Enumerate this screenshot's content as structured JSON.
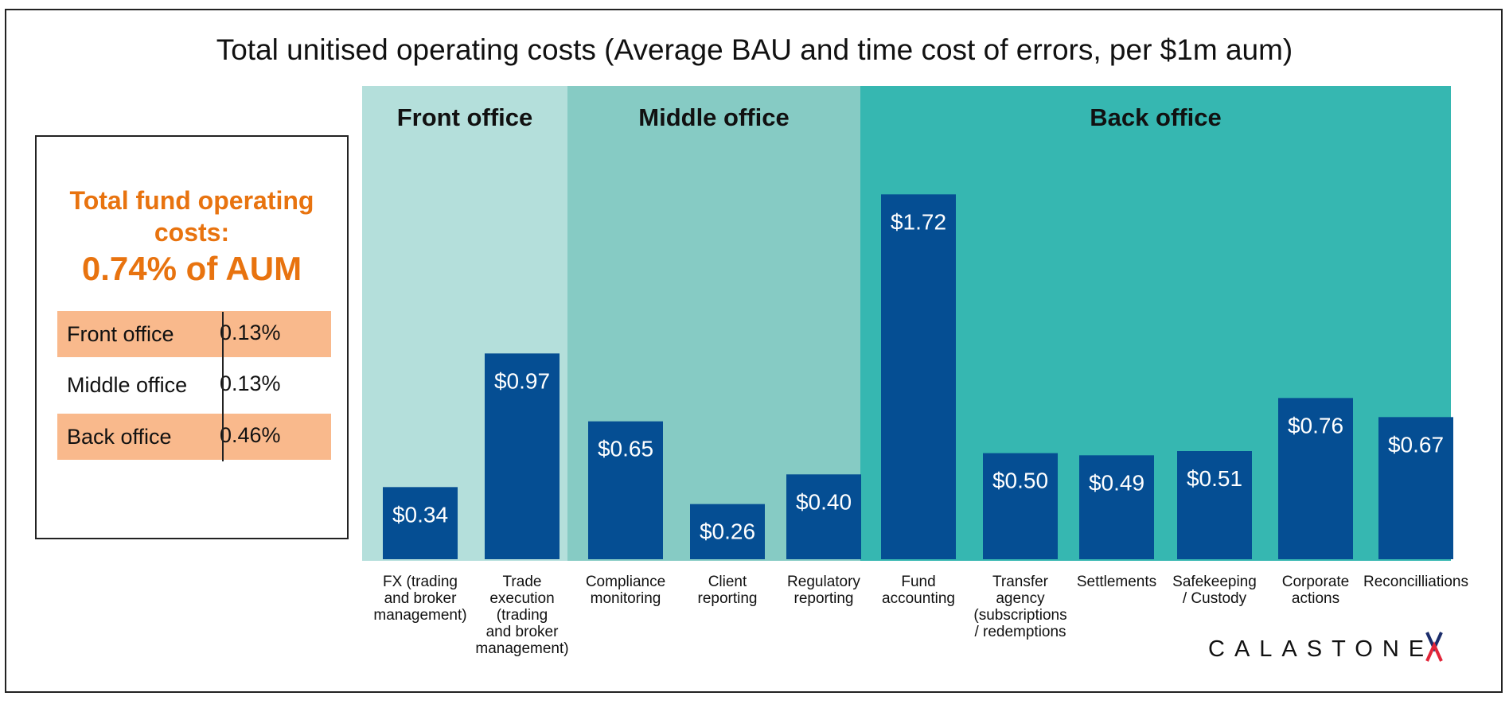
{
  "chart_data": {
    "type": "bar",
    "title": "Total unitised operating costs (Average BAU and time cost of errors, per $1m aum)",
    "xlabel": "",
    "ylabel": "",
    "ylim": [
      0,
      1.95
    ],
    "sections": [
      {
        "name": "Front office",
        "color": "#b4dfdb",
        "start": 0,
        "end": 1
      },
      {
        "name": "Middle office",
        "color": "#86cbc4",
        "start": 2,
        "end": 4
      },
      {
        "name": "Back office",
        "color": "#36b7b1",
        "start": 5,
        "end": 10
      }
    ],
    "categories": [
      [
        "FX (trading",
        "and broker",
        "management)"
      ],
      [
        "Trade",
        "execution",
        "(trading",
        "and broker",
        "management)"
      ],
      [
        "Compliance",
        "monitoring"
      ],
      [
        "Client",
        "reporting"
      ],
      [
        "Regulatory",
        "reporting"
      ],
      [
        "Fund",
        "accounting"
      ],
      [
        "Transfer",
        "agency",
        "(subscriptions",
        "/ redemptions"
      ],
      [
        "Settlements"
      ],
      [
        "Safekeeping",
        "/ Custody"
      ],
      [
        "Corporate",
        "actions"
      ],
      [
        "Reconcilliations"
      ]
    ],
    "values": [
      0.34,
      0.97,
      0.65,
      0.26,
      0.4,
      1.72,
      0.5,
      0.49,
      0.51,
      0.76,
      0.67
    ],
    "value_labels": [
      "$0.34",
      "$0.97",
      "$0.65",
      "$0.26",
      "$0.40",
      "$1.72",
      "$0.50",
      "$0.49",
      "$0.51",
      "$0.76",
      "$0.67"
    ],
    "bar_color": "#054e93"
  },
  "summary": {
    "heading_line1": "Total fund operating",
    "heading_line2": "costs:",
    "total": "0.74% of AUM",
    "rows": [
      {
        "label": "Front office",
        "value": "0.13%"
      },
      {
        "label": "Middle office",
        "value": "0.13%"
      },
      {
        "label": "Back office",
        "value": "0.46%"
      }
    ]
  },
  "branding": {
    "logo_text": "CALASTONE"
  }
}
